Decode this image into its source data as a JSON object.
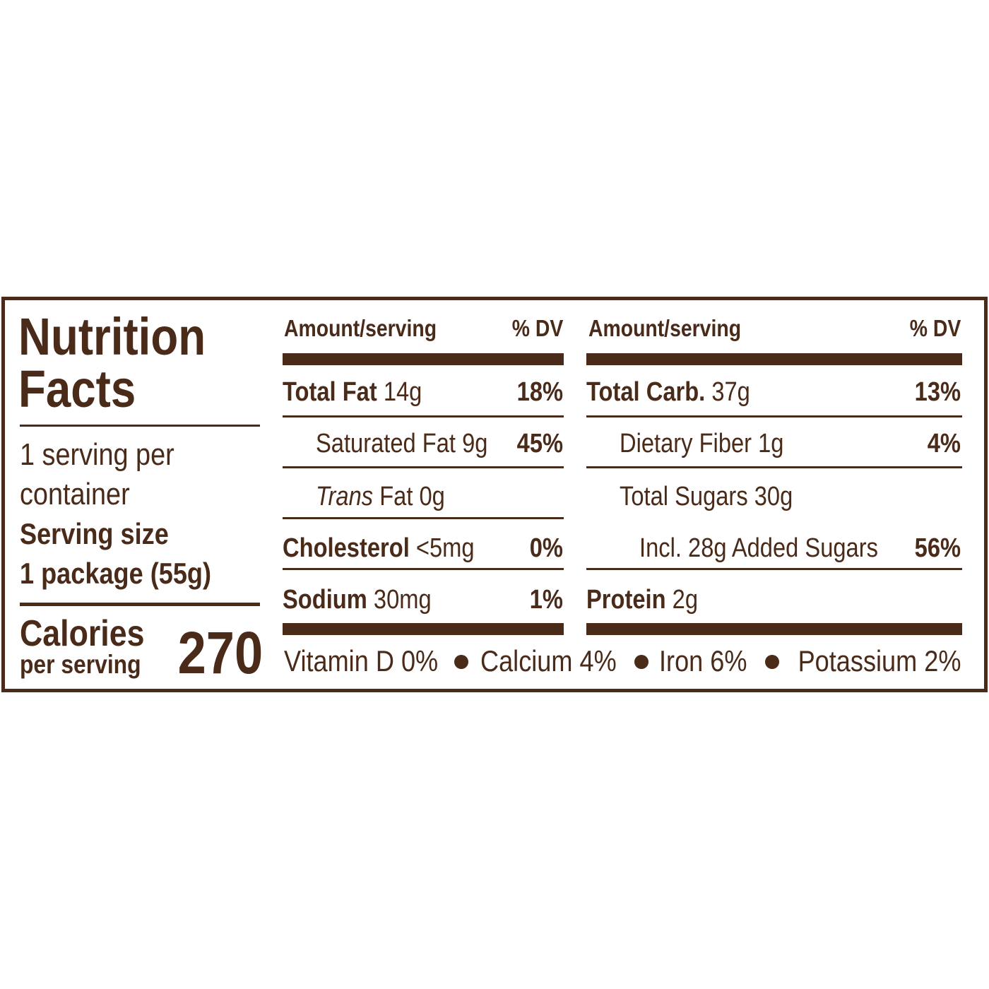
{
  "label": {
    "title": [
      "Nutrition",
      "Facts"
    ],
    "servings": [
      "1 serving per",
      "container"
    ],
    "serving_size": [
      "Serving size",
      "1 package (55g)"
    ],
    "calories": {
      "label": [
        "Calories",
        "per serving"
      ],
      "value": "270"
    },
    "left": {
      "header": {
        "amount": "Amount/serving",
        "dv": "% DV"
      },
      "rows": [
        {
          "name": "Total Fat",
          "amount": "14g",
          "dv": "18%"
        },
        {
          "name": "Saturated Fat",
          "amount": "9g",
          "dv": "45%"
        },
        {
          "name": [
            "Trans",
            "Fat"
          ],
          "amount": "0g"
        },
        {
          "name": "Cholesterol",
          "amount": "<5mg",
          "dv": "0%"
        },
        {
          "name": "Sodium",
          "amount": "30mg",
          "dv": "1%"
        }
      ]
    },
    "right": {
      "header": {
        "amount": "Amount/serving",
        "dv": "% DV"
      },
      "rows": [
        {
          "name": "Total Carb.",
          "amount": "37g",
          "dv": "13%"
        },
        {
          "name": "Dietary Fiber",
          "amount": "1g",
          "dv": "4%"
        },
        {
          "name": "Total Sugars",
          "amount": "30g"
        },
        {
          "name": "Incl. 28g Added Sugars",
          "dv": "56%"
        },
        {
          "name": "Protein",
          "amount": "2g"
        }
      ]
    },
    "footer": [
      "Vitamin D 0%",
      "Calcium 4%",
      "Iron 6%",
      "Potassium 2%"
    ]
  }
}
